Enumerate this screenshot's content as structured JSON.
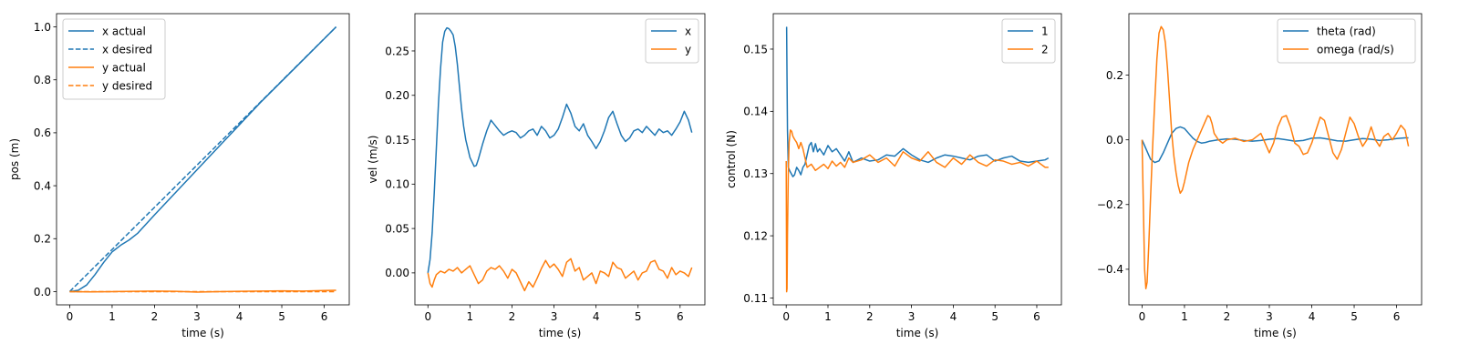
{
  "colors": {
    "blue": "#1f77b4",
    "orange": "#ff7f0e"
  },
  "chart_data": [
    {
      "type": "line",
      "xlabel": "time (s)",
      "ylabel": "pos (m)",
      "xlim": [
        -0.31,
        6.59
      ],
      "ylim": [
        -0.05,
        1.05
      ],
      "xticks": [
        0,
        1,
        2,
        3,
        4,
        5,
        6
      ],
      "yticks": [
        0.0,
        0.2,
        0.4,
        0.6,
        0.8,
        1.0
      ],
      "ytick_decimals": 1,
      "grid": false,
      "legend_position": "top-left",
      "series": [
        {
          "name": "x actual",
          "color": "#1f77b4",
          "dash": "solid",
          "x": [
            0,
            0.2,
            0.4,
            0.6,
            0.8,
            1.0,
            1.2,
            1.4,
            1.6,
            2.0,
            2.5,
            3.0,
            3.5,
            4.0,
            4.5,
            5.0,
            5.5,
            6.0,
            6.28
          ],
          "y": [
            0,
            0.005,
            0.025,
            0.065,
            0.11,
            0.15,
            0.175,
            0.195,
            0.22,
            0.29,
            0.375,
            0.46,
            0.545,
            0.63,
            0.715,
            0.795,
            0.875,
            0.955,
            1.0
          ]
        },
        {
          "name": "x desired",
          "color": "#1f77b4",
          "dash": "dashed",
          "x": [
            0,
            6.28
          ],
          "y": [
            0,
            1.0
          ]
        },
        {
          "name": "y actual",
          "color": "#ff7f0e",
          "dash": "solid",
          "x": [
            0,
            0.5,
            1,
            1.5,
            2,
            2.5,
            3,
            3.5,
            4,
            4.5,
            5,
            5.5,
            6,
            6.28
          ],
          "y": [
            0,
            -0.001,
            0.0,
            0.001,
            0.002,
            0.001,
            -0.002,
            0.0,
            0.001,
            0.002,
            0.003,
            0.002,
            0.004,
            0.005
          ]
        },
        {
          "name": "y desired",
          "color": "#ff7f0e",
          "dash": "dashed",
          "x": [
            0,
            6.28
          ],
          "y": [
            0,
            0
          ]
        }
      ]
    },
    {
      "type": "line",
      "xlabel": "time (s)",
      "ylabel": "vel (m/s)",
      "xlim": [
        -0.31,
        6.59
      ],
      "ylim": [
        -0.036,
        0.292
      ],
      "xticks": [
        0,
        1,
        2,
        3,
        4,
        5,
        6
      ],
      "yticks": [
        0.0,
        0.05,
        0.1,
        0.15,
        0.2,
        0.25
      ],
      "ytick_decimals": 2,
      "grid": false,
      "legend_position": "top-right",
      "series": [
        {
          "name": "x",
          "color": "#1f77b4",
          "dash": "solid",
          "x": [
            0,
            0.05,
            0.1,
            0.15,
            0.2,
            0.25,
            0.3,
            0.35,
            0.4,
            0.45,
            0.5,
            0.55,
            0.6,
            0.65,
            0.7,
            0.75,
            0.8,
            0.85,
            0.9,
            0.95,
            1.0,
            1.05,
            1.1,
            1.15,
            1.2,
            1.3,
            1.4,
            1.5,
            1.6,
            1.7,
            1.8,
            1.9,
            2.0,
            2.1,
            2.2,
            2.3,
            2.4,
            2.5,
            2.6,
            2.7,
            2.8,
            2.9,
            3.0,
            3.1,
            3.2,
            3.3,
            3.4,
            3.5,
            3.6,
            3.7,
            3.8,
            3.9,
            4.0,
            4.1,
            4.2,
            4.3,
            4.4,
            4.5,
            4.6,
            4.7,
            4.8,
            4.9,
            5.0,
            5.1,
            5.2,
            5.3,
            5.4,
            5.5,
            5.6,
            5.7,
            5.8,
            5.9,
            6.0,
            6.1,
            6.2,
            6.28
          ],
          "y": [
            0,
            0.015,
            0.045,
            0.09,
            0.14,
            0.19,
            0.23,
            0.26,
            0.272,
            0.276,
            0.275,
            0.272,
            0.268,
            0.255,
            0.235,
            0.21,
            0.185,
            0.165,
            0.15,
            0.14,
            0.13,
            0.125,
            0.12,
            0.121,
            0.128,
            0.145,
            0.16,
            0.172,
            0.166,
            0.16,
            0.155,
            0.158,
            0.16,
            0.158,
            0.152,
            0.155,
            0.16,
            0.162,
            0.155,
            0.165,
            0.16,
            0.152,
            0.155,
            0.162,
            0.175,
            0.19,
            0.18,
            0.165,
            0.16,
            0.168,
            0.155,
            0.148,
            0.14,
            0.148,
            0.16,
            0.175,
            0.182,
            0.168,
            0.155,
            0.148,
            0.152,
            0.16,
            0.162,
            0.158,
            0.165,
            0.16,
            0.155,
            0.162,
            0.158,
            0.16,
            0.155,
            0.162,
            0.17,
            0.182,
            0.172,
            0.158
          ]
        },
        {
          "name": "y",
          "color": "#ff7f0e",
          "dash": "solid",
          "x": [
            0,
            0.05,
            0.1,
            0.15,
            0.2,
            0.3,
            0.4,
            0.5,
            0.6,
            0.7,
            0.8,
            0.9,
            1.0,
            1.1,
            1.2,
            1.3,
            1.4,
            1.5,
            1.6,
            1.7,
            1.8,
            1.9,
            2.0,
            2.1,
            2.2,
            2.3,
            2.4,
            2.5,
            2.6,
            2.7,
            2.8,
            2.9,
            3.0,
            3.1,
            3.2,
            3.3,
            3.4,
            3.5,
            3.6,
            3.7,
            3.8,
            3.9,
            4.0,
            4.1,
            4.2,
            4.3,
            4.4,
            4.5,
            4.6,
            4.7,
            4.8,
            4.9,
            5.0,
            5.1,
            5.2,
            5.3,
            5.4,
            5.5,
            5.6,
            5.7,
            5.8,
            5.9,
            6.0,
            6.1,
            6.2,
            6.28
          ],
          "y": [
            0,
            -0.012,
            -0.016,
            -0.008,
            -0.002,
            0.002,
            0.0,
            0.004,
            0.002,
            0.006,
            0.0,
            0.004,
            0.008,
            -0.002,
            -0.012,
            -0.008,
            0.002,
            0.006,
            0.004,
            0.008,
            0.002,
            -0.006,
            0.004,
            0.0,
            -0.01,
            -0.02,
            -0.01,
            -0.016,
            -0.006,
            0.005,
            0.014,
            0.006,
            0.01,
            0.004,
            -0.004,
            0.012,
            0.016,
            0.002,
            0.006,
            -0.008,
            -0.004,
            0.0,
            -0.012,
            0.002,
            0.0,
            -0.004,
            0.012,
            0.006,
            0.004,
            -0.006,
            -0.002,
            0.002,
            -0.008,
            0.0,
            0.002,
            0.012,
            0.014,
            0.004,
            0.002,
            -0.006,
            0.006,
            -0.002,
            0.002,
            0.0,
            -0.004,
            0.006
          ]
        }
      ]
    },
    {
      "type": "line",
      "xlabel": "time (s)",
      "ylabel": "control (N)",
      "xlim": [
        -0.31,
        6.59
      ],
      "ylim": [
        0.1089,
        0.1557
      ],
      "xticks": [
        0,
        1,
        2,
        3,
        4,
        5,
        6
      ],
      "yticks": [
        0.11,
        0.12,
        0.13,
        0.14,
        0.15
      ],
      "ytick_decimals": 2,
      "grid": false,
      "legend_position": "top-right",
      "series": [
        {
          "name": "1",
          "color": "#1f77b4",
          "dash": "solid",
          "x": [
            0,
            0.01,
            0.02,
            0.03,
            0.05,
            0.08,
            0.12,
            0.16,
            0.2,
            0.25,
            0.3,
            0.35,
            0.4,
            0.45,
            0.5,
            0.55,
            0.6,
            0.65,
            0.7,
            0.75,
            0.8,
            0.9,
            1.0,
            1.1,
            1.2,
            1.3,
            1.4,
            1.5,
            1.6,
            1.8,
            2.0,
            2.2,
            2.4,
            2.6,
            2.8,
            3.0,
            3.2,
            3.4,
            3.6,
            3.8,
            4.0,
            4.2,
            4.4,
            4.6,
            4.8,
            5.0,
            5.2,
            5.4,
            5.6,
            5.8,
            6.0,
            6.2,
            6.28
          ],
          "y": [
            0.1535,
            0.1535,
            0.145,
            0.137,
            0.131,
            0.1305,
            0.13,
            0.1295,
            0.1298,
            0.131,
            0.1305,
            0.1298,
            0.131,
            0.1315,
            0.133,
            0.1345,
            0.135,
            0.1335,
            0.1348,
            0.1335,
            0.134,
            0.133,
            0.1345,
            0.1335,
            0.134,
            0.133,
            0.132,
            0.1335,
            0.1318,
            0.1325,
            0.132,
            0.1322,
            0.133,
            0.1328,
            0.134,
            0.133,
            0.1322,
            0.1318,
            0.1325,
            0.133,
            0.1328,
            0.1325,
            0.1322,
            0.1328,
            0.133,
            0.132,
            0.1325,
            0.1328,
            0.132,
            0.1318,
            0.132,
            0.1322,
            0.1325
          ]
        },
        {
          "name": "2",
          "color": "#ff7f0e",
          "dash": "solid",
          "x": [
            0,
            0.01,
            0.02,
            0.03,
            0.05,
            0.07,
            0.1,
            0.13,
            0.16,
            0.2,
            0.25,
            0.3,
            0.35,
            0.4,
            0.5,
            0.6,
            0.7,
            0.8,
            0.9,
            1.0,
            1.1,
            1.2,
            1.3,
            1.4,
            1.5,
            1.6,
            1.8,
            2.0,
            2.2,
            2.4,
            2.6,
            2.8,
            3.0,
            3.2,
            3.4,
            3.6,
            3.8,
            4.0,
            4.2,
            4.4,
            4.6,
            4.8,
            5.0,
            5.2,
            5.4,
            5.6,
            5.8,
            6.0,
            6.2,
            6.28
          ],
          "y": [
            0.132,
            0.111,
            0.1115,
            0.12,
            0.13,
            0.135,
            0.137,
            0.1368,
            0.136,
            0.1355,
            0.135,
            0.134,
            0.135,
            0.134,
            0.131,
            0.1315,
            0.1305,
            0.131,
            0.1315,
            0.1308,
            0.132,
            0.1312,
            0.1318,
            0.131,
            0.1325,
            0.1318,
            0.1322,
            0.133,
            0.1318,
            0.1325,
            0.1312,
            0.1335,
            0.1325,
            0.132,
            0.1335,
            0.1318,
            0.131,
            0.1325,
            0.1315,
            0.133,
            0.1318,
            0.1312,
            0.1322,
            0.132,
            0.1315,
            0.1318,
            0.1312,
            0.132,
            0.131,
            0.131
          ]
        }
      ]
    },
    {
      "type": "line",
      "xlabel": "time (s)",
      "ylabel": "",
      "xlim": [
        -0.31,
        6.59
      ],
      "ylim": [
        -0.51,
        0.39
      ],
      "xticks": [
        0,
        1,
        2,
        3,
        4,
        5,
        6
      ],
      "yticks": [
        -0.4,
        -0.2,
        0.0,
        0.2
      ],
      "ytick_decimals": 1,
      "grid": false,
      "legend_position": "top-right",
      "series": [
        {
          "name": "theta (rad)",
          "color": "#1f77b4",
          "dash": "solid",
          "x": [
            0,
            0.1,
            0.2,
            0.3,
            0.4,
            0.5,
            0.6,
            0.7,
            0.8,
            0.9,
            1.0,
            1.1,
            1.2,
            1.3,
            1.4,
            1.5,
            1.6,
            1.8,
            2.0,
            2.2,
            2.4,
            2.6,
            2.8,
            3.0,
            3.2,
            3.4,
            3.6,
            3.8,
            4.0,
            4.2,
            4.4,
            4.6,
            4.8,
            5.0,
            5.2,
            5.4,
            5.6,
            5.8,
            6.0,
            6.2,
            6.28
          ],
          "y": [
            0,
            -0.03,
            -0.06,
            -0.07,
            -0.065,
            -0.04,
            -0.01,
            0.02,
            0.035,
            0.04,
            0.035,
            0.02,
            0.005,
            -0.005,
            -0.01,
            -0.008,
            -0.004,
            0.0,
            0.003,
            0.002,
            -0.002,
            -0.004,
            -0.002,
            0.002,
            0.004,
            0.0,
            -0.004,
            -0.002,
            0.005,
            0.006,
            0.002,
            -0.003,
            -0.004,
            0.0,
            0.004,
            0.002,
            -0.002,
            0.0,
            0.004,
            0.006,
            0.006
          ]
        },
        {
          "name": "omega (rad/s)",
          "color": "#ff7f0e",
          "dash": "solid",
          "x": [
            0,
            0.03,
            0.06,
            0.09,
            0.12,
            0.16,
            0.2,
            0.25,
            0.3,
            0.35,
            0.4,
            0.45,
            0.5,
            0.55,
            0.6,
            0.65,
            0.7,
            0.75,
            0.8,
            0.85,
            0.9,
            0.95,
            1.0,
            1.05,
            1.1,
            1.2,
            1.3,
            1.4,
            1.5,
            1.55,
            1.6,
            1.65,
            1.7,
            1.8,
            1.9,
            2.0,
            2.2,
            2.4,
            2.6,
            2.8,
            2.9,
            3.0,
            3.1,
            3.2,
            3.3,
            3.4,
            3.5,
            3.6,
            3.7,
            3.8,
            3.9,
            4.0,
            4.1,
            4.2,
            4.3,
            4.4,
            4.5,
            4.6,
            4.7,
            4.8,
            4.9,
            5.0,
            5.1,
            5.2,
            5.3,
            5.4,
            5.5,
            5.6,
            5.7,
            5.8,
            5.9,
            6.0,
            6.1,
            6.2,
            6.28
          ],
          "y": [
            0,
            -0.2,
            -0.4,
            -0.46,
            -0.44,
            -0.32,
            -0.18,
            -0.02,
            0.12,
            0.25,
            0.33,
            0.35,
            0.34,
            0.3,
            0.22,
            0.12,
            0.02,
            -0.05,
            -0.1,
            -0.14,
            -0.165,
            -0.155,
            -0.13,
            -0.1,
            -0.07,
            -0.03,
            0.0,
            0.03,
            0.06,
            0.075,
            0.07,
            0.05,
            0.02,
            0.0,
            -0.01,
            0.0,
            0.005,
            -0.005,
            0.0,
            0.02,
            -0.01,
            -0.04,
            -0.01,
            0.04,
            0.07,
            0.075,
            0.04,
            -0.01,
            -0.02,
            -0.045,
            -0.04,
            -0.01,
            0.03,
            0.07,
            0.06,
            0.01,
            -0.04,
            -0.06,
            -0.03,
            0.02,
            0.07,
            0.05,
            0.01,
            -0.02,
            0.0,
            0.04,
            0.0,
            -0.02,
            0.01,
            0.02,
            0.0,
            0.02,
            0.045,
            0.03,
            -0.02
          ]
        }
      ]
    }
  ]
}
